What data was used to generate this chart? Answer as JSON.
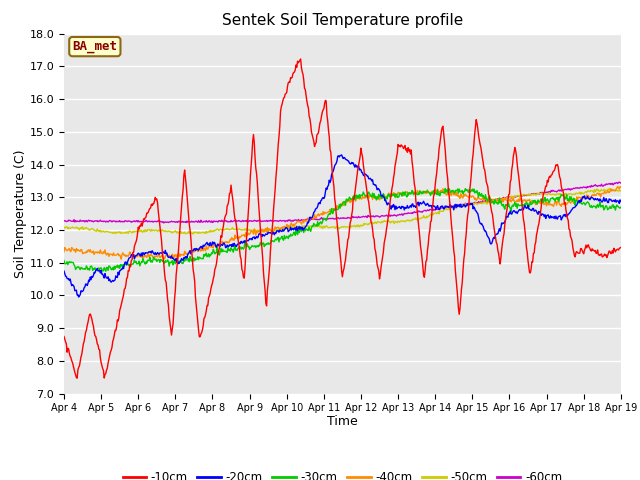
{
  "title": "Sentek Soil Temperature profile",
  "xlabel": "Time",
  "ylabel": "Soil Temperature (C)",
  "ylim": [
    7.0,
    18.0
  ],
  "yticks": [
    7.0,
    8.0,
    9.0,
    10.0,
    11.0,
    12.0,
    13.0,
    14.0,
    15.0,
    16.0,
    17.0,
    18.0
  ],
  "annotation": "BA_met",
  "annotation_color": "#8B0000",
  "annotation_bg": "#FFFFCC",
  "annotation_border": "#8B6914",
  "bg_color": "#E8E8E8",
  "plot_bg": "#E8E8E8",
  "colors": {
    "-10cm": "#FF0000",
    "-20cm": "#0000FF",
    "-30cm": "#00CC00",
    "-40cm": "#FF8C00",
    "-50cm": "#CCCC00",
    "-60cm": "#CC00CC"
  },
  "x_labels": [
    "Apr 4",
    "Apr 5",
    "Apr 6",
    "Apr 7",
    "Apr 8",
    "Apr 9",
    "Apr 10",
    "Apr 11",
    "Apr 12",
    "Apr 13",
    "Apr 14",
    "Apr 15",
    "Apr 16",
    "Apr 17",
    "Apr 18",
    "Apr 19"
  ],
  "linewidth": 1.0
}
